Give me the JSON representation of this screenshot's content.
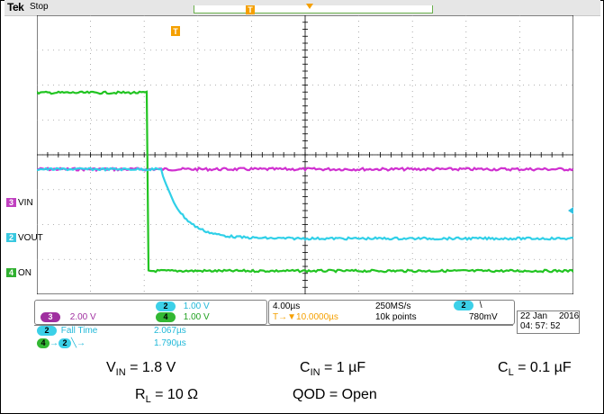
{
  "scope": {
    "brand": "Tek",
    "run_state": "Stop",
    "trigger_marker": "T",
    "trigger_top_marker": "T"
  },
  "channels": {
    "ch3": {
      "badge": "3",
      "name": "VIN",
      "color": "#c040c0"
    },
    "ch2": {
      "badge": "2",
      "name": "VOUT",
      "color": "#38c8e0"
    },
    "ch4": {
      "badge": "4",
      "name": "ON",
      "color": "#30b030"
    }
  },
  "readout": {
    "ch3_badge": "3",
    "ch3_scale": "2.00 V",
    "ch2_badge": "2",
    "ch2_scale": "1.00 V",
    "ch4_badge": "4",
    "ch4_scale": "1.00 V",
    "timebase": "4.00µs",
    "sample_rate": "250MS/s",
    "trigger_source_badge": "2",
    "trigger_slope": "\\",
    "trigger_delay": "T→▼10.0000µs",
    "record_length": "10k points",
    "trigger_level": "780mV",
    "date": "22 Jan",
    "year": "2016",
    "time": "04: 57: 52"
  },
  "measurements": {
    "fall_badge": "2",
    "fall_label": "Fall Time",
    "fall_value": "2.067µs",
    "delay_badge_a": "4",
    "delay_arrow": "→",
    "delay_badge_b": "2",
    "delay_symbol": "╲→",
    "delay_value": "1.790µs"
  },
  "conditions": {
    "vin_sym": "V",
    "vin_sub": "IN",
    "vin_val": " = 1.8 V",
    "cin_sym": "C",
    "cin_sub": "IN",
    "cin_val": " = 1 µF",
    "cl_sym": "C",
    "cl_sub": "L",
    "cl_val": " = 0.1 µF",
    "rl_sym": "R",
    "rl_sub": "L",
    "rl_val": " = 10 Ω",
    "qod": "QOD = Open"
  }
}
